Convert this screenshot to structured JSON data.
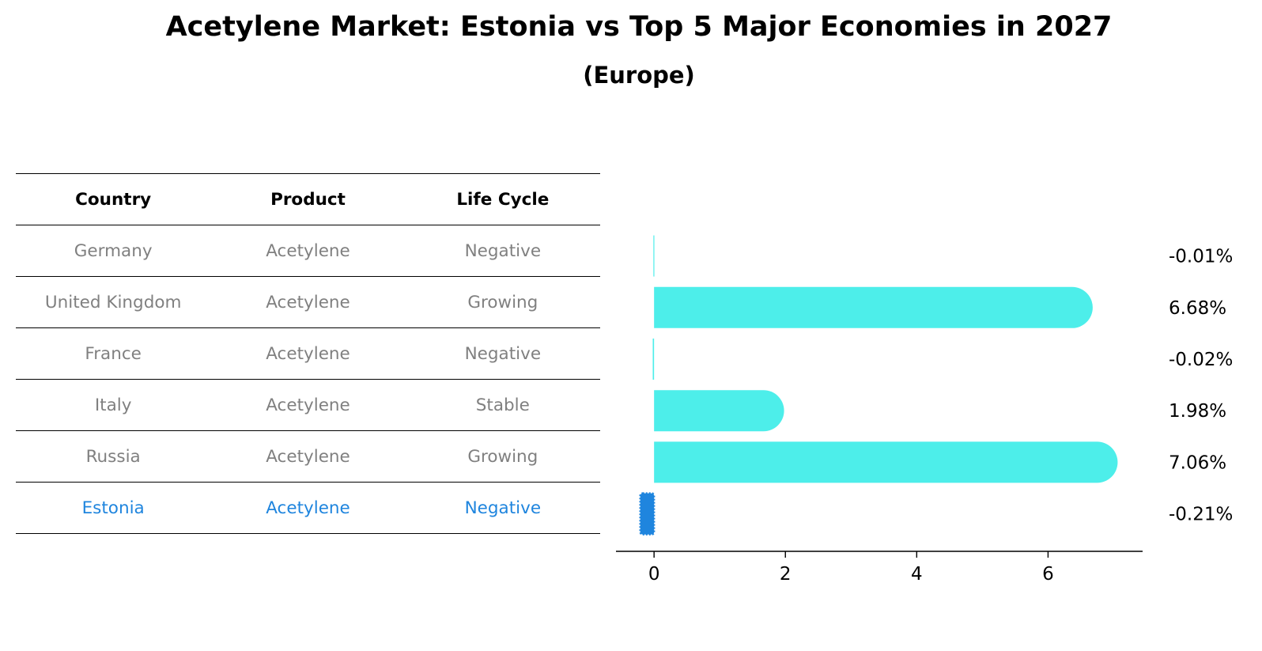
{
  "title": "Acetylene Market: Estonia vs Top 5 Major Economies in 2027",
  "subtitle": "(Europe)",
  "table": {
    "headers": [
      "Country",
      "Product",
      "Life Cycle"
    ],
    "rows": [
      {
        "country": "Germany",
        "product": "Acetylene",
        "life_cycle": "Negative"
      },
      {
        "country": "United Kingdom",
        "product": "Acetylene",
        "life_cycle": "Growing"
      },
      {
        "country": "France",
        "product": "Acetylene",
        "life_cycle": "Negative"
      },
      {
        "country": "Italy",
        "product": "Acetylene",
        "life_cycle": "Stable"
      },
      {
        "country": "Russia",
        "product": "Acetylene",
        "life_cycle": "Growing"
      },
      {
        "country": "Estonia",
        "product": "Acetylene",
        "life_cycle": "Negative"
      }
    ]
  },
  "chart_data": {
    "type": "bar",
    "orientation": "horizontal",
    "categories": [
      "Germany",
      "United Kingdom",
      "France",
      "Italy",
      "Russia",
      "Estonia"
    ],
    "values": [
      -0.01,
      6.68,
      -0.02,
      1.98,
      7.06,
      -0.21
    ],
    "value_labels": [
      "-0.01%",
      "6.68%",
      "-0.02%",
      "1.98%",
      "7.06%",
      "-0.21%"
    ],
    "xlim": [
      -0.58,
      7.44
    ],
    "xticks": [
      0,
      2,
      4,
      6
    ],
    "xtick_labels": [
      "0",
      "2",
      "4",
      "6"
    ],
    "grid": false,
    "colors": {
      "default": "#4deeea",
      "highlight": "#1f85de",
      "text_default": "#808080"
    },
    "highlight_index": 5
  }
}
